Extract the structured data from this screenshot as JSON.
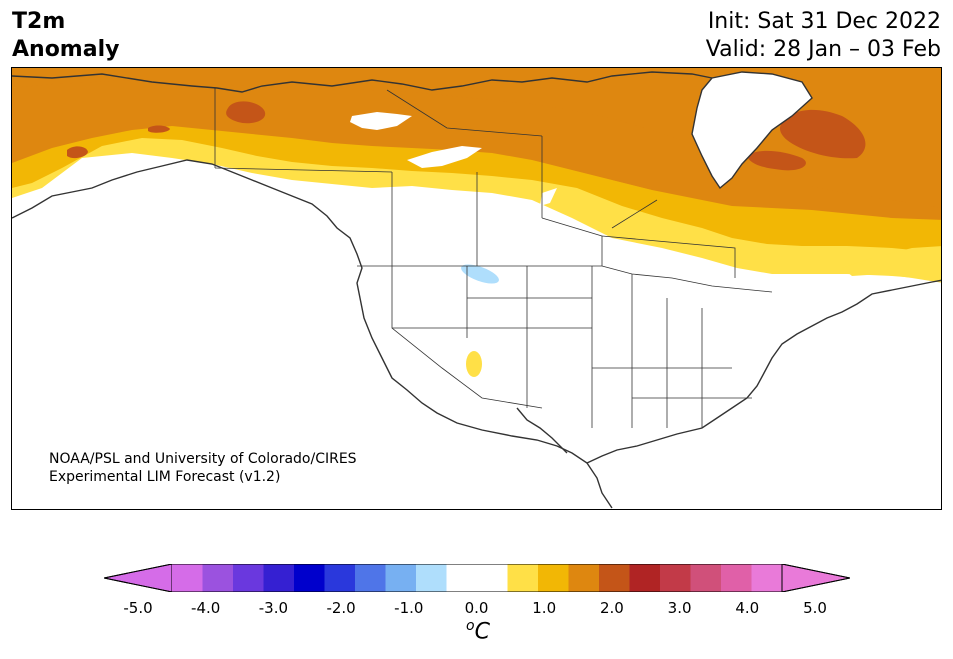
{
  "header": {
    "title_line1": "T2m",
    "title_line2": "Anomaly",
    "init": "Init: Sat 31 Dec 2022",
    "valid": "Valid: 28 Jan – 03 Feb"
  },
  "map": {
    "region": "North America",
    "credit_line1": "NOAA/PSL and University of Colorado/CIRES",
    "credit_line2": "Experimental LIM Forecast (v1.2)"
  },
  "colorbar": {
    "unit_base": "C",
    "unit_sup": "o",
    "ticks": [
      "-5.0",
      "-4.0",
      "-3.0",
      "-2.0",
      "-1.0",
      "0.0",
      "1.0",
      "2.0",
      "3.0",
      "4.0",
      "5.0"
    ],
    "under_color": "#d56ce8",
    "over_color": "#e97ad9",
    "colors": [
      "#d56ce8",
      "#9b52df",
      "#6a38de",
      "#3520d2",
      "#0000cc",
      "#2a38dc",
      "#4f75e8",
      "#77b0f2",
      "#afdefc",
      "#ffffff",
      "#ffffff",
      "#ffe047",
      "#f2b705",
      "#de8710",
      "#c45518",
      "#b02424",
      "#c23a48",
      "#d0507a",
      "#e060a8",
      "#e97ad9"
    ]
  }
}
